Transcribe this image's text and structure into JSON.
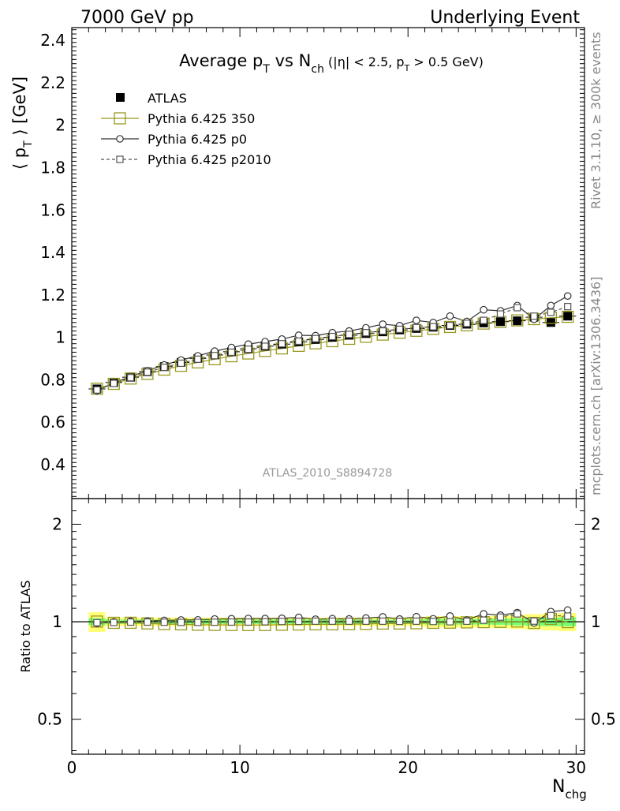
{
  "header": {
    "left": "7000 GeV pp",
    "right": "Underlying Event"
  },
  "side": {
    "top": "Rivet 3.1.10, ≥ 300k events",
    "bottom": "mcplots.cern.ch [arXiv:1306.3436]"
  },
  "analysis_label": "ATLAS_2010_S8894728",
  "title": {
    "p1": "Average p",
    "s1": "T",
    "p2": " vs N",
    "s2": "ch",
    "p3": " (|η| < 2.5, p",
    "s3": "T",
    "p4": " > 0.5 GeV)"
  },
  "ylabel": {
    "p1": "⟨ p",
    "s1": "T",
    "p2": " ⟩ [GeV]"
  },
  "xlabel": {
    "p1": "N",
    "s1": "chg"
  },
  "ratio_ylabel": "Ratio to ATLAS",
  "colors": {
    "data": "#000000",
    "p350": "#99991f",
    "p0": "#333333",
    "p2010": "#555555",
    "band_outer": "#ffff77",
    "band_inner": "#77ff77"
  },
  "chart_data": {
    "type": "scatter",
    "x": [
      1.5,
      2.5,
      3.5,
      4.5,
      5.5,
      6.5,
      7.5,
      8.5,
      9.5,
      10.5,
      11.5,
      12.5,
      13.5,
      14.5,
      15.5,
      16.5,
      17.5,
      18.5,
      19.5,
      20.5,
      21.5,
      22.5,
      23.5,
      24.5,
      25.5,
      26.5,
      27.5,
      28.5,
      29.5
    ],
    "xlim": [
      0,
      30.5
    ],
    "ylim": [
      0.24,
      2.46
    ],
    "yscale": "linear",
    "xticks": [
      0,
      10,
      20,
      30
    ],
    "yticks": [
      0.4,
      0.6,
      0.8,
      1,
      1.2,
      1.4,
      1.6,
      1.8,
      2,
      2.2,
      2.4
    ],
    "legend_position": "top-left",
    "series": [
      {
        "name": "ATLAS",
        "key": "data",
        "marker": "filled-square",
        "values": [
          0.757,
          0.787,
          0.812,
          0.838,
          0.862,
          0.882,
          0.901,
          0.917,
          0.932,
          0.946,
          0.958,
          0.968,
          0.979,
          0.99,
          1.0,
          1.01,
          1.018,
          1.026,
          1.035,
          1.042,
          1.048,
          1.056,
          1.062,
          1.068,
          1.074,
          1.078,
          1.095,
          1.07,
          1.1
        ]
      },
      {
        "name": "Pythia 6.425 350",
        "key": "p350",
        "marker": "open-square-large",
        "line": "solid",
        "values": [
          0.758,
          0.781,
          0.806,
          0.828,
          0.848,
          0.866,
          0.882,
          0.897,
          0.911,
          0.924,
          0.936,
          0.948,
          0.96,
          0.972,
          0.982,
          0.993,
          1.003,
          1.013,
          1.022,
          1.031,
          1.04,
          1.049,
          1.057,
          1.065,
          1.073,
          1.08,
          1.086,
          1.092,
          1.097
        ]
      },
      {
        "name": "Pythia 6.425 p0",
        "key": "p0",
        "marker": "open-circle",
        "line": "solid",
        "values": [
          0.748,
          0.786,
          0.815,
          0.843,
          0.87,
          0.893,
          0.913,
          0.935,
          0.952,
          0.968,
          0.98,
          0.992,
          1.01,
          1.008,
          1.022,
          1.03,
          1.045,
          1.062,
          1.055,
          1.08,
          1.07,
          1.1,
          1.075,
          1.13,
          1.125,
          1.15,
          1.085,
          1.15,
          1.195
        ]
      },
      {
        "name": "Pythia 6.425 p2010",
        "key": "p2010",
        "marker": "open-square-small",
        "line": "dashed",
        "values": [
          0.752,
          0.783,
          0.81,
          0.836,
          0.859,
          0.878,
          0.897,
          0.914,
          0.93,
          0.944,
          0.958,
          0.97,
          0.982,
          0.994,
          1.004,
          1.014,
          1.022,
          1.03,
          1.038,
          1.046,
          1.05,
          1.056,
          1.066,
          1.08,
          1.11,
          1.14,
          1.1,
          1.118,
          1.145
        ]
      }
    ],
    "ratio": {
      "ylim": [
        0.39,
        2.4
      ],
      "yscale": "log",
      "yticks": [
        0.5,
        1,
        2
      ],
      "yticklabels": [
        "0.5",
        "1",
        "2"
      ],
      "band_outer_rel": [
        0.07,
        0.03,
        0.03,
        0.03,
        0.03,
        0.03,
        0.03,
        0.03,
        0.03,
        0.03,
        0.03,
        0.03,
        0.03,
        0.03,
        0.03,
        0.03,
        0.03,
        0.03,
        0.03,
        0.03,
        0.04,
        0.04,
        0.04,
        0.04,
        0.045,
        0.05,
        0.055,
        0.06,
        0.065
      ],
      "band_inner_rel": [
        0.025,
        0.015,
        0.015,
        0.015,
        0.015,
        0.015,
        0.015,
        0.015,
        0.015,
        0.015,
        0.015,
        0.015,
        0.015,
        0.015,
        0.015,
        0.015,
        0.015,
        0.015,
        0.015,
        0.015,
        0.02,
        0.02,
        0.02,
        0.02,
        0.022,
        0.025,
        0.028,
        0.03,
        0.032
      ]
    }
  }
}
